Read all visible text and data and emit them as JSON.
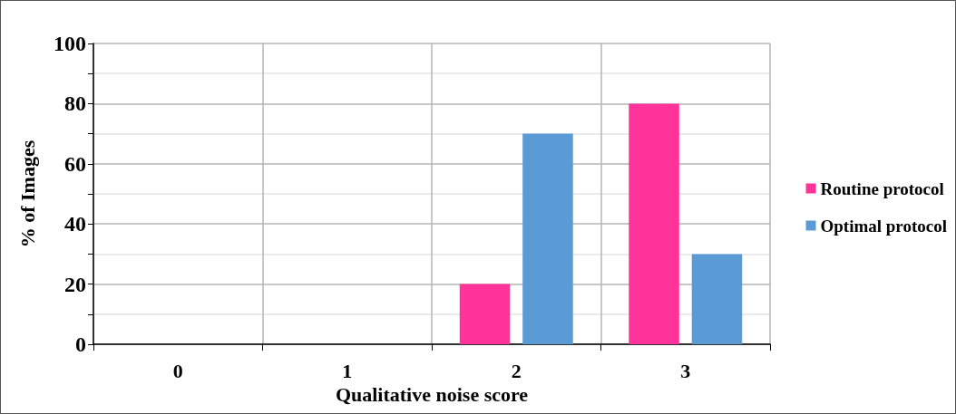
{
  "chart_data": {
    "type": "bar",
    "xlabel": "Qualitative noise score",
    "ylabel": "% of Images",
    "categories": [
      "0",
      "1",
      "2",
      "3"
    ],
    "series": [
      {
        "name": "Routine protocol",
        "color": "#ff3399",
        "values": [
          0,
          0,
          20,
          80
        ]
      },
      {
        "name": "Optimal protocol",
        "color": "#5b9bd5",
        "values": [
          0,
          0,
          70,
          30
        ]
      }
    ],
    "ylim": [
      0,
      100
    ],
    "yticks": [
      0,
      {
        "value": 10,
        "label": null
      },
      20,
      {
        "value": 30,
        "label": null
      },
      40,
      {
        "value": 50,
        "label": null
      },
      60,
      {
        "value": 70,
        "label": null
      },
      80,
      {
        "value": 90,
        "label": null
      },
      100
    ],
    "grid": true,
    "legend": "right"
  }
}
